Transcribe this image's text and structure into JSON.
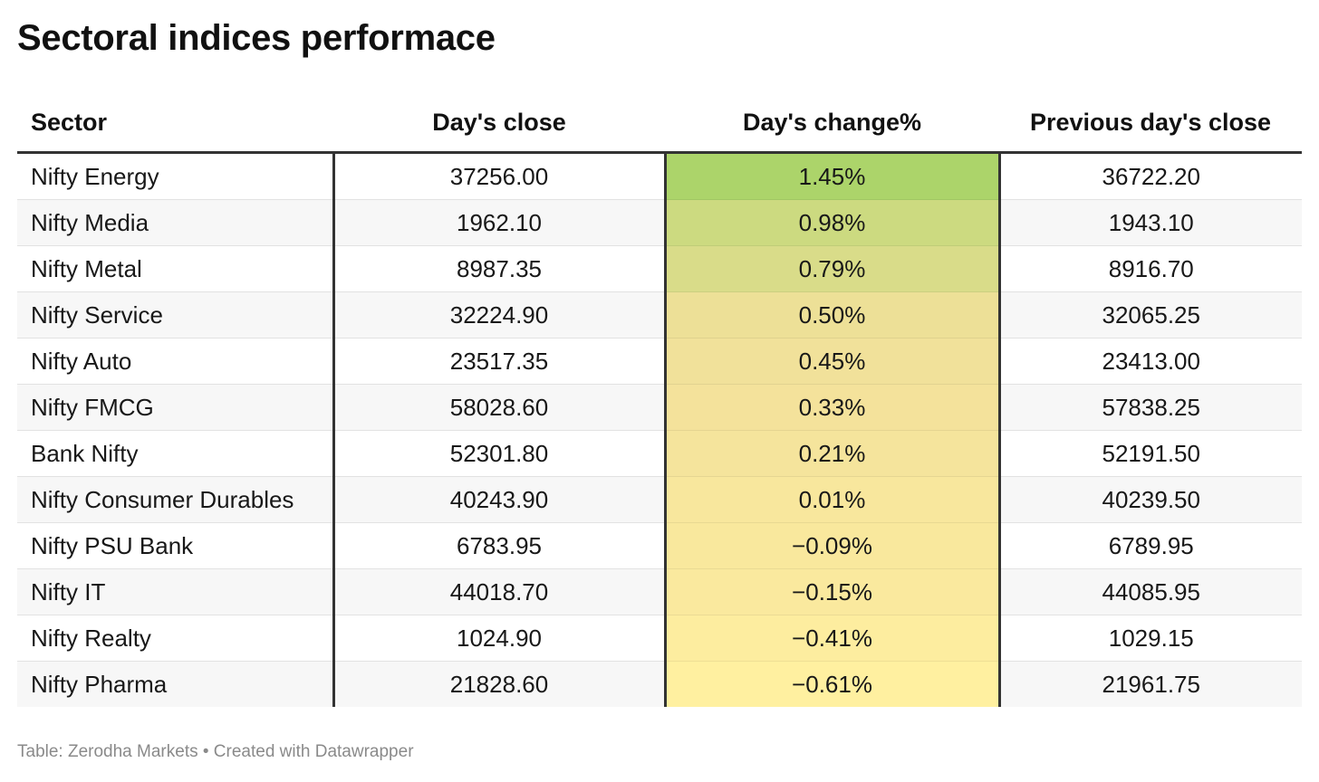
{
  "chart_data": {
    "type": "table",
    "title": "Sectoral indices performace",
    "columns": [
      "Sector",
      "Day's close",
      "Day's change%",
      "Previous day's close"
    ],
    "rows": [
      {
        "sector": "Nifty Energy",
        "close": "37256.00",
        "change": "1.45%",
        "change_value": 1.45,
        "prev": "36722.20"
      },
      {
        "sector": "Nifty Media",
        "close": "1962.10",
        "change": "0.98%",
        "change_value": 0.98,
        "prev": "1943.10"
      },
      {
        "sector": "Nifty Metal",
        "close": "8987.35",
        "change": "0.79%",
        "change_value": 0.79,
        "prev": "8916.70"
      },
      {
        "sector": "Nifty Service",
        "close": "32224.90",
        "change": "0.50%",
        "change_value": 0.5,
        "prev": "32065.25"
      },
      {
        "sector": "Nifty Auto",
        "close": "23517.35",
        "change": "0.45%",
        "change_value": 0.45,
        "prev": "23413.00"
      },
      {
        "sector": "Nifty FMCG",
        "close": "58028.60",
        "change": "0.33%",
        "change_value": 0.33,
        "prev": "57838.25"
      },
      {
        "sector": "Bank Nifty",
        "close": "52301.80",
        "change": "0.21%",
        "change_value": 0.21,
        "prev": "52191.50"
      },
      {
        "sector": "Nifty Consumer Durables",
        "close": "40243.90",
        "change": "0.01%",
        "change_value": 0.01,
        "prev": "40239.50"
      },
      {
        "sector": "Nifty PSU Bank",
        "close": "6783.95",
        "change": "−0.09%",
        "change_value": -0.09,
        "prev": "6789.95"
      },
      {
        "sector": "Nifty IT",
        "close": "44018.70",
        "change": "−0.15%",
        "change_value": -0.15,
        "prev": "44085.95"
      },
      {
        "sector": "Nifty Realty",
        "close": "1024.90",
        "change": "−0.41%",
        "change_value": -0.41,
        "prev": "1029.15"
      },
      {
        "sector": "Nifty Pharma",
        "close": "21828.60",
        "change": "−0.61%",
        "change_value": -0.61,
        "prev": "21961.75"
      }
    ],
    "heatmap_colors": {
      "high": "#acd46a",
      "mid": "#f3e19b",
      "low": "#fff0a0"
    },
    "source": "Table: Zerodha Markets • Created with Datawrapper"
  }
}
